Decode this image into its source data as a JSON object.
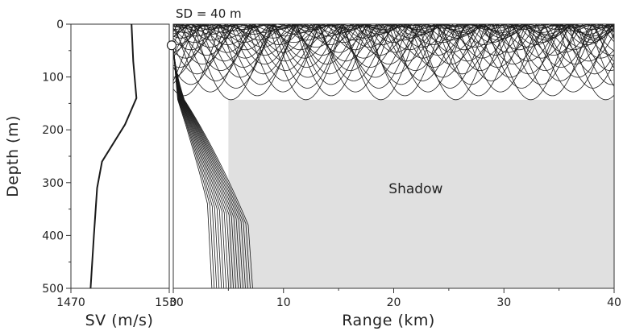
{
  "chart_data": [
    {
      "type": "line",
      "panel": "sound-speed-profile",
      "xlabel": "SV (m/s)",
      "ylabel": "Depth (m)",
      "xlim": [
        1470,
        1530
      ],
      "ylim": [
        500,
        0
      ],
      "x_ticks": [
        1470,
        1530
      ],
      "y_ticks": [
        0,
        100,
        200,
        300,
        400,
        500
      ],
      "series": [
        {
          "points": [
            {
              "x": 1507,
              "y": 0
            },
            {
              "x": 1508,
              "y": 70
            },
            {
              "x": 1510,
              "y": 140
            },
            {
              "x": 1503,
              "y": 190
            },
            {
              "x": 1489,
              "y": 260
            },
            {
              "x": 1486,
              "y": 310
            },
            {
              "x": 1484,
              "y": 400
            },
            {
              "x": 1482,
              "y": 500
            }
          ]
        }
      ],
      "grid": false
    },
    {
      "type": "line",
      "panel": "ray-trace",
      "xlabel": "Range (km)",
      "xlim": [
        0,
        40
      ],
      "ylim": [
        500,
        0
      ],
      "x_ticks": [
        0,
        10,
        20,
        30,
        40
      ],
      "y_ticks": [
        0,
        100,
        200,
        300,
        400,
        500
      ],
      "annotations": [
        {
          "text": "SD = 40 m"
        },
        {
          "text": "Shadow"
        }
      ],
      "source_depth_m": 40,
      "duct_bottom_depth_m": 143,
      "shadow_zone": {
        "range_km": [
          5,
          40
        ],
        "depth_m": [
          143,
          500
        ]
      },
      "ducted_rays": {
        "count": 30,
        "max_turning_depth_m": 143
      },
      "escaping_rays": {
        "count": 18,
        "exit_range_km": [
          3.5,
          7.2
        ]
      },
      "grid": false
    }
  ],
  "colors": {
    "ray": "#1a1a1a",
    "shadow_fill": "#e0e0e0",
    "axis": "#333333",
    "source_marker_fill": "#ffffff"
  }
}
